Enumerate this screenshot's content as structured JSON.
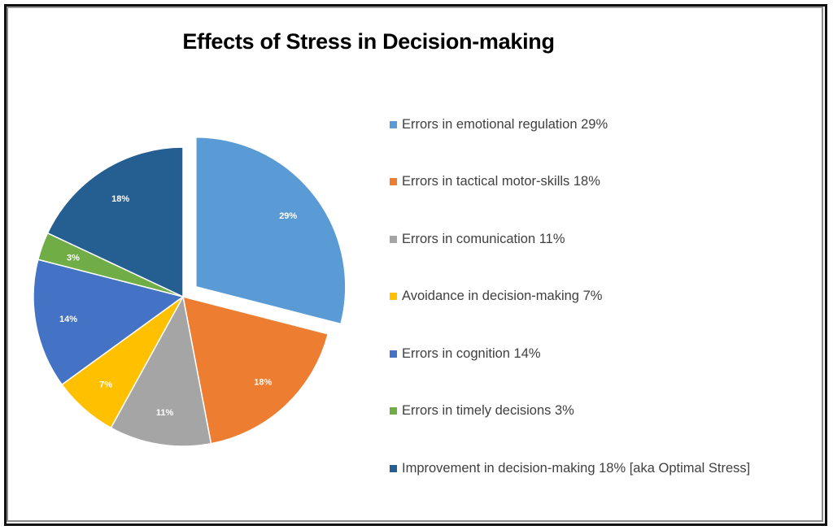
{
  "chart_data": {
    "type": "pie",
    "title": "Effects of Stress in Decision-making",
    "start": "12 o'clock",
    "direction": "clockwise",
    "exploded": [
      "Errors in emotional regulation"
    ],
    "legend_position": "right",
    "slices": [
      {
        "name": "Errors in emotional regulation",
        "value": 29,
        "label": "29%",
        "legend": "Errors in emotional regulation 29%",
        "color": "#5B9BD5"
      },
      {
        "name": "Errors in tactical motor-skills",
        "value": 18,
        "label": "18%",
        "legend": "Errors in tactical motor-skills 18%",
        "color": "#ED7D31"
      },
      {
        "name": "Errors in comunication",
        "value": 11,
        "label": "11%",
        "legend": "Errors in comunication 11%",
        "color": "#A5A5A5"
      },
      {
        "name": "Avoidance in decision-making",
        "value": 7,
        "label": "7%",
        "legend": "Avoidance in decision-making 7%",
        "color": "#FFC000"
      },
      {
        "name": "Errors in cognition",
        "value": 14,
        "label": "14%",
        "legend": "Errors in cognition 14%",
        "color": "#4472C4"
      },
      {
        "name": "Errors in timely decisions",
        "value": 3,
        "label": "3%",
        "legend": "Errors in timely decisions 3%",
        "color": "#70AD47"
      },
      {
        "name": "Improvement in decision-making",
        "value": 18,
        "label": "18%",
        "legend": "Improvement in decision-making 18% [aka Optimal Stress]",
        "color": "#255E91"
      }
    ]
  }
}
